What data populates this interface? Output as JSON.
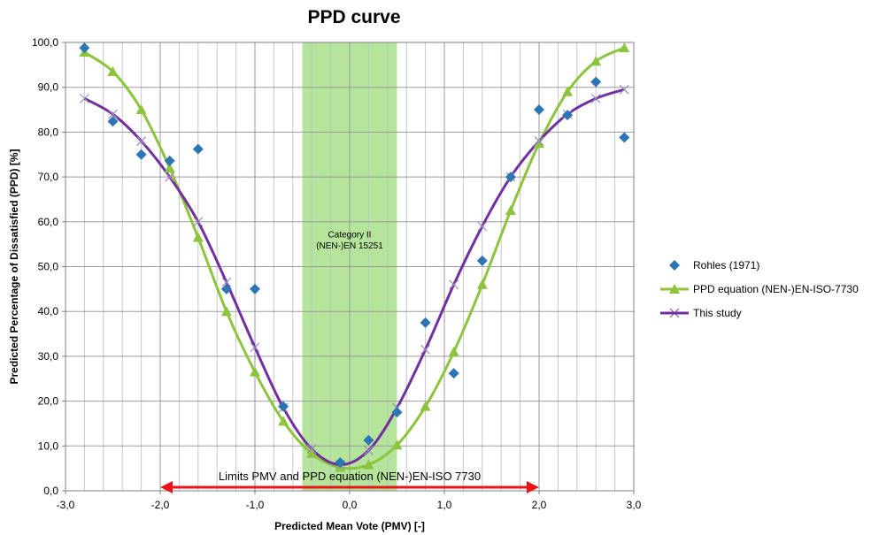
{
  "chart_data": {
    "type": "scatter",
    "title": "PPD curve",
    "xlabel": "Predicted Mean Vote (PMV) [-]",
    "ylabel": "Predicted Percentage of Dissatisfied (PPD) [%]",
    "xlim": [
      -3,
      3
    ],
    "ylim": [
      0,
      100
    ],
    "x_ticks": [
      "-3,0",
      "-2,0",
      "-1,0",
      "0,0",
      "1,0",
      "2,0",
      "3,0"
    ],
    "y_ticks": [
      "0,0",
      "10,0",
      "20,0",
      "30,0",
      "40,0",
      "50,0",
      "60,0",
      "70,0",
      "80,0",
      "90,0",
      "100,0"
    ],
    "grid": true,
    "legend_position": "right",
    "band": {
      "x_range": [
        -0.5,
        0.5
      ],
      "label_line1": "Category II",
      "label_line2": "(NEN-)EN 15251",
      "color": "#a8df8a"
    },
    "limits_arrow": {
      "x_range": [
        -2,
        2
      ],
      "label": "Limits PMV and PPD equation (NEN-)EN-ISO 7730",
      "color": "#e8141a"
    },
    "series": [
      {
        "name": "Rohles (1971)",
        "marker": "diamond",
        "color": "#2e75b6",
        "points": [
          [
            -2.8,
            98.8
          ],
          [
            -2.5,
            82.4
          ],
          [
            -2.2,
            75.0
          ],
          [
            -1.9,
            73.6
          ],
          [
            -1.6,
            76.2
          ],
          [
            -1.3,
            45.0
          ],
          [
            -1.0,
            45.0
          ],
          [
            -0.7,
            18.8
          ],
          [
            -0.1,
            6.3
          ],
          [
            0.2,
            11.3
          ],
          [
            0.5,
            17.5
          ],
          [
            0.8,
            37.5
          ],
          [
            1.1,
            26.2
          ],
          [
            1.4,
            51.3
          ],
          [
            1.7,
            70.0
          ],
          [
            2.0,
            85.0
          ],
          [
            2.3,
            83.8
          ],
          [
            2.6,
            91.2
          ],
          [
            2.9,
            78.8
          ]
        ]
      },
      {
        "name": "PPD equation (NEN-)EN-ISO-7730",
        "marker": "triangle",
        "color": "#8cc43d",
        "points": [
          [
            -2.8,
            97.8
          ],
          [
            -2.5,
            93.5
          ],
          [
            -2.2,
            85.0
          ],
          [
            -1.9,
            72.0
          ],
          [
            -1.6,
            56.5
          ],
          [
            -1.3,
            40.0
          ],
          [
            -1.0,
            26.5
          ],
          [
            -0.7,
            15.5
          ],
          [
            -0.4,
            8.3
          ],
          [
            -0.1,
            5.2
          ],
          [
            0.2,
            5.8
          ],
          [
            0.5,
            10.2
          ],
          [
            0.8,
            18.8
          ],
          [
            1.1,
            31.0
          ],
          [
            1.4,
            46.0
          ],
          [
            1.7,
            62.5
          ],
          [
            2.0,
            77.5
          ],
          [
            2.3,
            89.0
          ],
          [
            2.6,
            95.8
          ],
          [
            2.9,
            98.8
          ]
        ]
      },
      {
        "name": "This study",
        "marker": "x",
        "color": "#7030a0",
        "points": [
          [
            -2.8,
            87.5
          ],
          [
            -2.5,
            84.0
          ],
          [
            -2.2,
            78.0
          ],
          [
            -1.9,
            70.0
          ],
          [
            -1.6,
            60.0
          ],
          [
            -1.3,
            46.5
          ],
          [
            -1.0,
            32.0
          ],
          [
            -0.7,
            18.5
          ],
          [
            -0.4,
            9.3
          ],
          [
            -0.1,
            5.8
          ],
          [
            0.2,
            9.0
          ],
          [
            0.5,
            18.5
          ],
          [
            0.8,
            31.5
          ],
          [
            1.1,
            46.0
          ],
          [
            1.4,
            59.0
          ],
          [
            1.7,
            70.0
          ],
          [
            2.0,
            78.0
          ],
          [
            2.3,
            84.0
          ],
          [
            2.6,
            87.5
          ],
          [
            2.9,
            89.5
          ]
        ]
      }
    ]
  }
}
